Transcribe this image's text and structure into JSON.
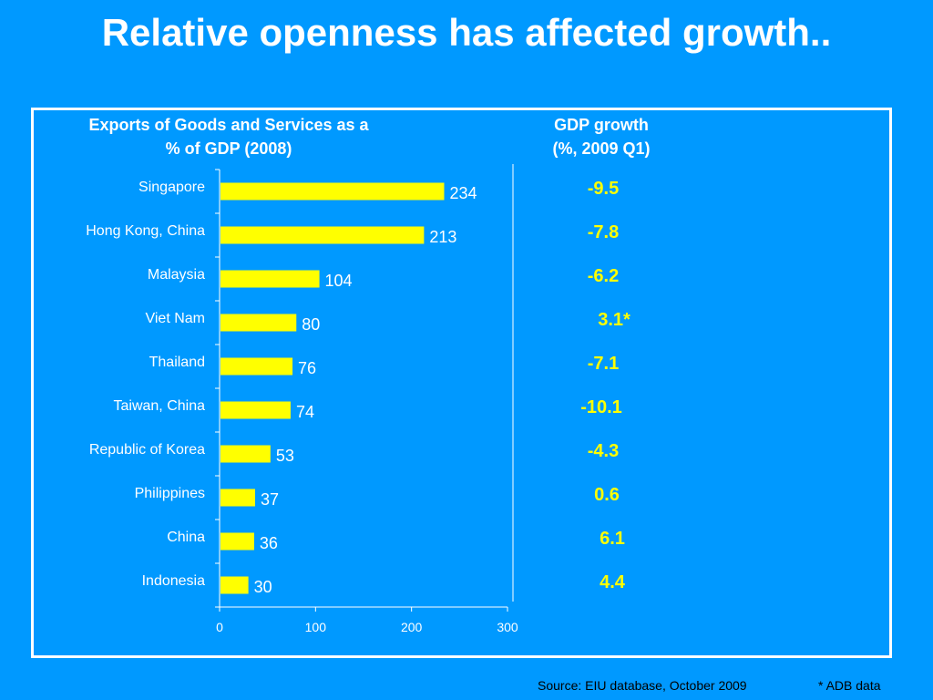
{
  "slide": {
    "title": "Relative openness has affected growth.."
  },
  "exports_panel": {
    "title_line1": "Exports of Goods and Services as a",
    "title_line2": "% of GDP (2008)"
  },
  "gdp_panel": {
    "title_line1": "GDP growth",
    "title_line2": "(%, 2009 Q1)"
  },
  "chart_data": [
    {
      "type": "bar",
      "orientation": "horizontal",
      "title": "Exports of Goods and Services as a % of GDP (2008)",
      "categories": [
        "Singapore",
        "Hong Kong, China",
        "Malaysia",
        "Viet Nam",
        "Thailand",
        "Taiwan, China",
        "Republic of Korea",
        "Philippines",
        "China",
        "Indonesia"
      ],
      "values": [
        234,
        213,
        104,
        80,
        76,
        74,
        53,
        37,
        36,
        30
      ],
      "value_labels": [
        "234",
        "213",
        "104",
        "80",
        "76",
        "74",
        "53",
        "37",
        "36",
        "30"
      ],
      "xlim": [
        0,
        300
      ],
      "xticks": [
        0,
        100,
        200,
        300
      ],
      "xtick_labels": [
        "0",
        "100",
        "200",
        "300"
      ],
      "grid": false,
      "bar_color": "#ffff00"
    },
    {
      "type": "table",
      "title": "GDP growth (%, 2009 Q1)",
      "categories": [
        "Singapore",
        "Hong Kong, China",
        "Malaysia",
        "Viet Nam",
        "Thailand",
        "Taiwan, China",
        "Republic of Korea",
        "Philippines",
        "China",
        "Indonesia"
      ],
      "values": [
        "-9.5",
        "-7.8",
        "-6.2",
        "3.1*",
        "-7.1",
        "-10.1",
        "-4.3",
        "0.6",
        "6.1",
        "4.4"
      ]
    }
  ],
  "footer": {
    "source": "Source:  EIU database, October 2009",
    "adb_note": "* ADB data"
  },
  "colors": {
    "background": "#0099ff",
    "bar": "#ffff00",
    "text": "#ffffff",
    "gdp_text": "#ffff00"
  }
}
